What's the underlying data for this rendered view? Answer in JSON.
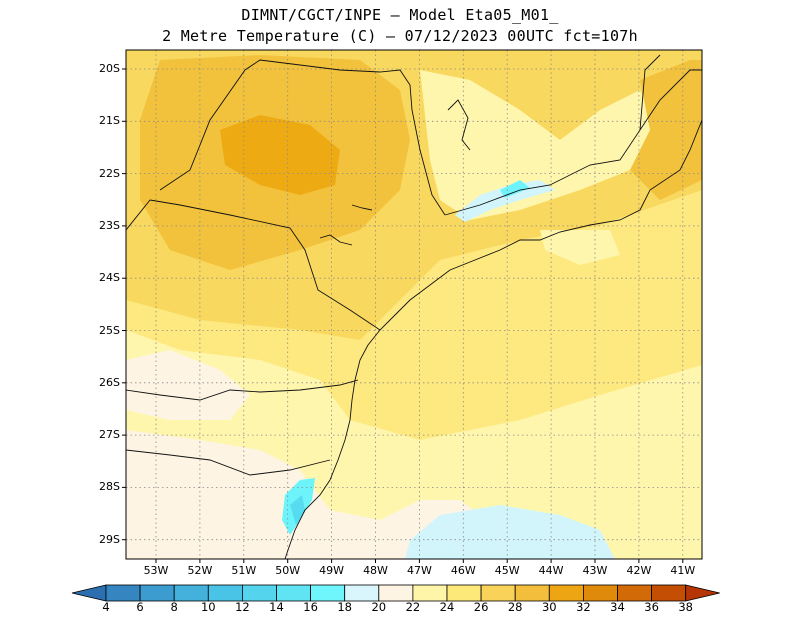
{
  "title": {
    "line1": "DIMNT/CGCT/INPE –  Model Eta05_M01_",
    "line2": "2 Metre Temperature (C) –  07/12/2023 00UTC fct=107h"
  },
  "map": {
    "lat_labels": [
      "20S",
      "21S",
      "22S",
      "23S",
      "24S",
      "25S",
      "26S",
      "27S",
      "28S",
      "29S"
    ],
    "lon_labels": [
      "53W",
      "52W",
      "51W",
      "50W",
      "49W",
      "48W",
      "47W",
      "46W",
      "45W",
      "44W",
      "43W",
      "42W",
      "41W"
    ],
    "grid": "dotted"
  },
  "colorbar": {
    "labels": [
      "4",
      "6",
      "8",
      "10",
      "12",
      "14",
      "16",
      "18",
      "20",
      "22",
      "24",
      "26",
      "28",
      "30",
      "32",
      "34",
      "36",
      "38"
    ],
    "colors": [
      "#2c6fb0",
      "#3585c0",
      "#3d9ccf",
      "#43b1dc",
      "#4ac4e6",
      "#55d4ee",
      "#60e4f4",
      "#6ff6fc",
      "#d8f6fc",
      "#fdf4e4",
      "#fff5a8",
      "#fde87a",
      "#f9d25a",
      "#f3be3c",
      "#eea514",
      "#e08a0c",
      "#d26a08",
      "#c44e04",
      "#b53504"
    ],
    "units": "C"
  },
  "palette": {
    "c18_20": "#d2f5fb",
    "c20_22": "#fdf4e4",
    "c22_24": "#fff6ad",
    "c24_26": "#fde97f",
    "c26_28": "#f8d85e",
    "c28_30": "#f2c23c",
    "c30_32": "#eeaa12",
    "c16_18": "#6df4fb",
    "c14_16": "#55dcf0"
  }
}
